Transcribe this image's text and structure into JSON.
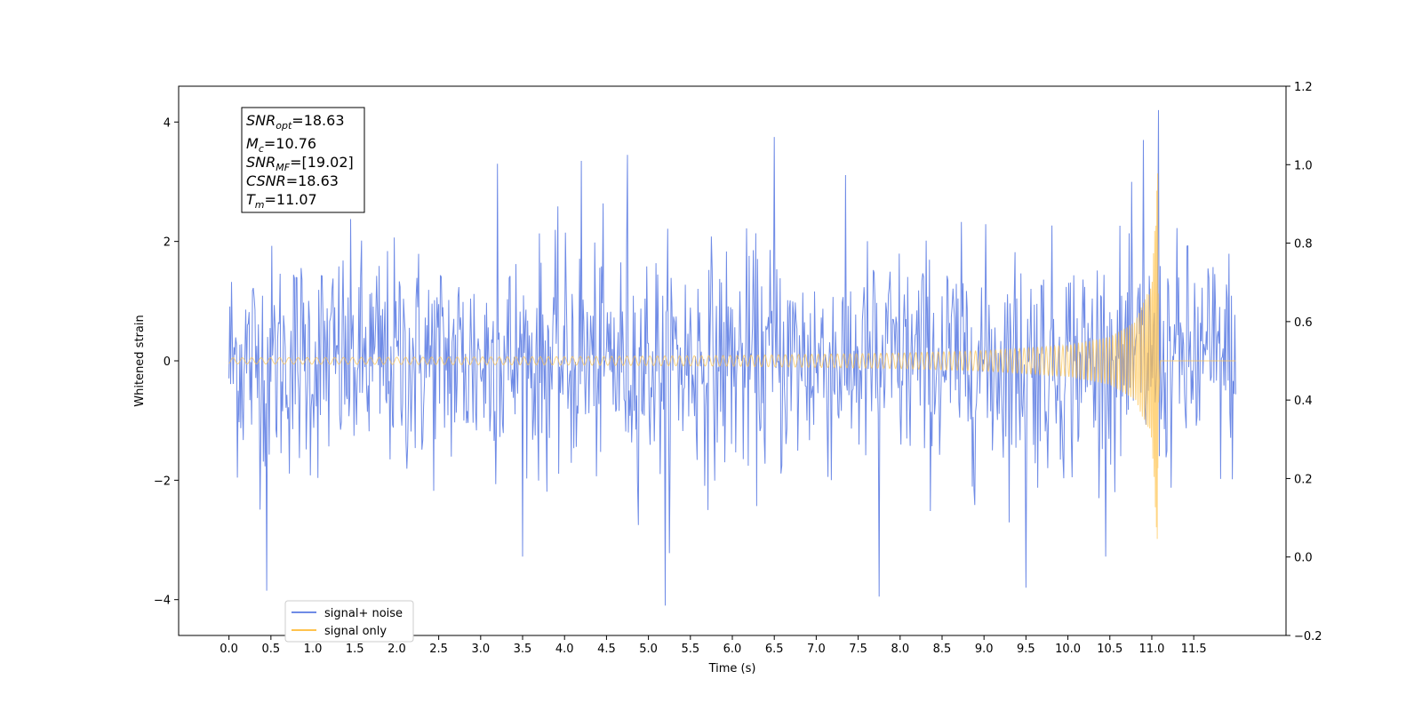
{
  "chart_data": {
    "type": "line",
    "xlabel": "Time (s)",
    "ylabel": "Whitened strain",
    "xlim": [
      -0.6,
      12.6
    ],
    "ylim": [
      -4.6,
      4.6
    ],
    "y2lim": [
      -0.2,
      1.2
    ],
    "grid": false,
    "legend_placement": "lower-left",
    "x_ticks": [
      0.0,
      0.5,
      1.0,
      1.5,
      2.0,
      2.5,
      3.0,
      3.5,
      4.0,
      4.5,
      5.0,
      5.5,
      6.0,
      6.5,
      7.0,
      7.5,
      8.0,
      8.5,
      9.0,
      9.5,
      10.0,
      10.5,
      11.0,
      11.5
    ],
    "x_tick_labels": [
      "0.0",
      "0.5",
      "1.0",
      "1.5",
      "2.0",
      "2.5",
      "3.0",
      "3.5",
      "4.0",
      "4.5",
      "5.0",
      "5.5",
      "6.0",
      "6.5",
      "7.0",
      "7.5",
      "8.0",
      "8.5",
      "9.0",
      "9.5",
      "10.0",
      "10.5",
      "11.0",
      "11.5"
    ],
    "y_ticks": [
      4,
      2,
      0,
      -2,
      -4
    ],
    "y_tick_labels": [
      "4",
      "2",
      "0",
      "−2",
      "−4"
    ],
    "y2_ticks": [
      1.2,
      1.0,
      0.8,
      0.6,
      0.4,
      0.2,
      0.0,
      -0.2
    ],
    "y2_tick_labels": [
      "1.2",
      "1.0",
      "0.8",
      "0.6",
      "0.4",
      "0.2",
      "0.0",
      "−0.2"
    ],
    "series": [
      {
        "name": "signal+ noise",
        "color": "#6f8be6",
        "x_range": [
          0.0,
          12.0
        ],
        "sample_step": 0.01,
        "typical_amplitude": 1.9,
        "max_value": 4.2,
        "min_value": -4.1,
        "peaks": [
          {
            "x": 0.45,
            "y": -3.85
          },
          {
            "x": 3.2,
            "y": 3.3
          },
          {
            "x": 4.2,
            "y": 3.35
          },
          {
            "x": 4.75,
            "y": 3.45
          },
          {
            "x": 5.2,
            "y": -4.1
          },
          {
            "x": 6.5,
            "y": 3.75
          },
          {
            "x": 7.75,
            "y": -3.95
          },
          {
            "x": 9.5,
            "y": -3.8
          },
          {
            "x": 10.9,
            "y": 3.7
          },
          {
            "x": 11.08,
            "y": 4.2
          }
        ]
      },
      {
        "name": "signal only",
        "color": "#ffc34d",
        "x_range": [
          0.0,
          12.0
        ],
        "envelope_x": [
          0.0,
          2.0,
          4.0,
          6.0,
          8.0,
          9.0,
          10.0,
          10.5,
          10.8,
          11.0,
          11.07,
          11.1,
          12.0
        ],
        "envelope_amplitude": [
          0.05,
          0.06,
          0.07,
          0.09,
          0.13,
          0.17,
          0.26,
          0.4,
          0.65,
          1.3,
          3.2,
          0.0,
          0.0
        ]
      }
    ],
    "annotation": {
      "snr_opt": {
        "name": "SNR",
        "sub": "opt",
        "value": "=18.63"
      },
      "mc": {
        "name": "M",
        "sub": "c",
        "value": "=10.76"
      },
      "snr_mf": {
        "name": "SNR",
        "sub": "MF",
        "value": "=[19.02]"
      },
      "csnr": {
        "name": "CSNR",
        "sub": "",
        "value": "=18.63"
      },
      "tm": {
        "name": "T",
        "sub": "m",
        "value": "=11.07"
      }
    }
  }
}
